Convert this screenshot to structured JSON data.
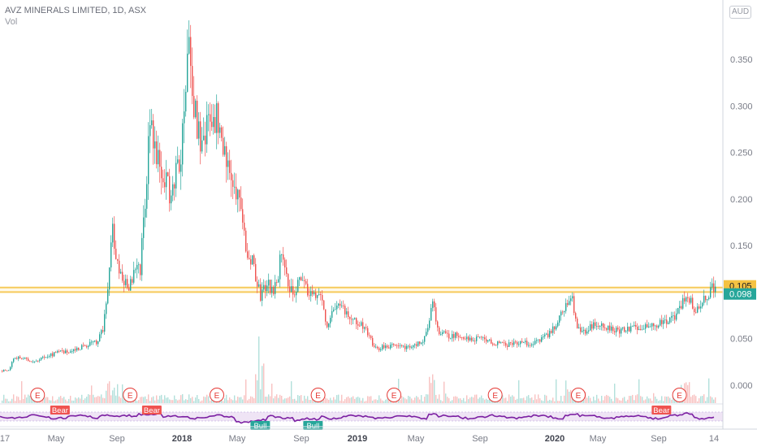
{
  "header": {
    "title": "AVZ MINERALS LIMITED, 1D, ASX",
    "volume_label": "Vol",
    "currency_button": "AUD"
  },
  "chart_data": {
    "type": "candlestick",
    "symbol": "AVZ MINERALS LIMITED",
    "interval": "1D",
    "exchange": "ASX",
    "currency": "AUD",
    "ylim": [
      -0.005,
      0.38
    ],
    "y_ticks": [
      "0.000",
      "0.050",
      "0.100",
      "0.150",
      "0.200",
      "0.250",
      "0.300",
      "0.350"
    ],
    "x_ticks": [
      "17",
      "May",
      "Sep",
      "2018",
      "May",
      "Sep",
      "2019",
      "May",
      "Sep",
      "2020",
      "May",
      "Sep",
      "14"
    ],
    "x_tick_bold": [
      "2018",
      "2019",
      "2020"
    ],
    "price_labels": [
      {
        "text": "0.105",
        "value": 0.105,
        "color": "#f5c242"
      },
      {
        "text": "0.100",
        "value": 0.1,
        "color": "#f5c242"
      },
      {
        "text": "0.098",
        "value": 0.098,
        "color": "#26a69a"
      }
    ],
    "horizontal_levels": [
      0.105,
      0.1
    ],
    "close_price_series": [
      [
        0,
        0.015
      ],
      [
        10,
        0.017
      ],
      [
        16,
        0.028
      ],
      [
        24,
        0.03
      ],
      [
        40,
        0.026
      ],
      [
        60,
        0.032
      ],
      [
        75,
        0.036
      ],
      [
        90,
        0.038
      ],
      [
        105,
        0.043
      ],
      [
        118,
        0.046
      ],
      [
        126,
        0.06
      ],
      [
        130,
        0.09
      ],
      [
        134,
        0.12
      ],
      [
        138,
        0.17
      ],
      [
        142,
        0.13
      ],
      [
        150,
        0.115
      ],
      [
        158,
        0.105
      ],
      [
        165,
        0.12
      ],
      [
        172,
        0.125
      ],
      [
        178,
        0.2
      ],
      [
        184,
        0.285
      ],
      [
        190,
        0.25
      ],
      [
        196,
        0.24
      ],
      [
        204,
        0.22
      ],
      [
        210,
        0.2
      ],
      [
        216,
        0.23
      ],
      [
        222,
        0.245
      ],
      [
        228,
        0.33
      ],
      [
        233,
        0.365
      ],
      [
        238,
        0.3
      ],
      [
        243,
        0.275
      ],
      [
        249,
        0.25
      ],
      [
        255,
        0.28
      ],
      [
        260,
        0.27
      ],
      [
        266,
        0.29
      ],
      [
        272,
        0.26
      ],
      [
        278,
        0.24
      ],
      [
        286,
        0.225
      ],
      [
        293,
        0.2
      ],
      [
        299,
        0.16
      ],
      [
        305,
        0.14
      ],
      [
        311,
        0.13
      ],
      [
        316,
        0.11
      ],
      [
        320,
        0.095
      ],
      [
        328,
        0.11
      ],
      [
        335,
        0.1
      ],
      [
        341,
        0.115
      ],
      [
        347,
        0.15
      ],
      [
        353,
        0.11
      ],
      [
        360,
        0.1
      ],
      [
        368,
        0.11
      ],
      [
        376,
        0.105
      ],
      [
        384,
        0.095
      ],
      [
        392,
        0.1
      ],
      [
        398,
        0.08
      ],
      [
        403,
        0.06
      ],
      [
        410,
        0.085
      ],
      [
        420,
        0.082
      ],
      [
        430,
        0.075
      ],
      [
        440,
        0.068
      ],
      [
        450,
        0.058
      ],
      [
        458,
        0.045
      ],
      [
        466,
        0.04
      ],
      [
        476,
        0.042
      ],
      [
        486,
        0.042
      ],
      [
        496,
        0.04
      ],
      [
        508,
        0.042
      ],
      [
        520,
        0.048
      ],
      [
        527,
        0.06
      ],
      [
        532,
        0.095
      ],
      [
        537,
        0.06
      ],
      [
        545,
        0.055
      ],
      [
        555,
        0.052
      ],
      [
        565,
        0.055
      ],
      [
        575,
        0.05
      ],
      [
        590,
        0.05
      ],
      [
        605,
        0.046
      ],
      [
        620,
        0.043
      ],
      [
        635,
        0.045
      ],
      [
        650,
        0.045
      ],
      [
        665,
        0.048
      ],
      [
        675,
        0.055
      ],
      [
        684,
        0.065
      ],
      [
        692,
        0.08
      ],
      [
        698,
        0.09
      ],
      [
        703,
        0.1
      ],
      [
        708,
        0.07
      ],
      [
        714,
        0.055
      ],
      [
        722,
        0.06
      ],
      [
        730,
        0.065
      ],
      [
        740,
        0.065
      ],
      [
        750,
        0.06
      ],
      [
        760,
        0.058
      ],
      [
        772,
        0.06
      ],
      [
        786,
        0.062
      ],
      [
        798,
        0.065
      ],
      [
        810,
        0.066
      ],
      [
        822,
        0.07
      ],
      [
        832,
        0.075
      ],
      [
        838,
        0.085
      ],
      [
        844,
        0.1
      ],
      [
        850,
        0.09
      ],
      [
        856,
        0.08
      ],
      [
        864,
        0.09
      ],
      [
        872,
        0.1
      ],
      [
        878,
        0.105
      ],
      [
        881,
        0.098
      ]
    ],
    "volume_scale": "relative 0-1",
    "earnings_marker_label": "E",
    "earnings_markers_x_fraction": [
      0.052,
      0.18,
      0.3,
      0.44,
      0.545,
      0.685,
      0.8,
      0.94
    ],
    "indicator": {
      "line_color": "#7b1fa2",
      "band_fill": "#e8d9f1",
      "signals": [
        {
          "label": "Bear",
          "type": "bear",
          "x_fraction": 0.083
        },
        {
          "label": "Bear",
          "type": "bear",
          "x_fraction": 0.21
        },
        {
          "label": "Bull",
          "type": "bull",
          "x_fraction": 0.36
        },
        {
          "label": "Bull",
          "type": "bull",
          "x_fraction": 0.433
        },
        {
          "label": "Bear",
          "type": "bear",
          "x_fraction": 0.915
        }
      ]
    },
    "colors": {
      "up": "#26a69a",
      "down": "#ef5350",
      "level_line": "#f5c242",
      "last_price": "#26a69a",
      "earnings": "#e53935",
      "axis_text": "#787b86",
      "grid_axis": "#d1d4dc"
    }
  }
}
